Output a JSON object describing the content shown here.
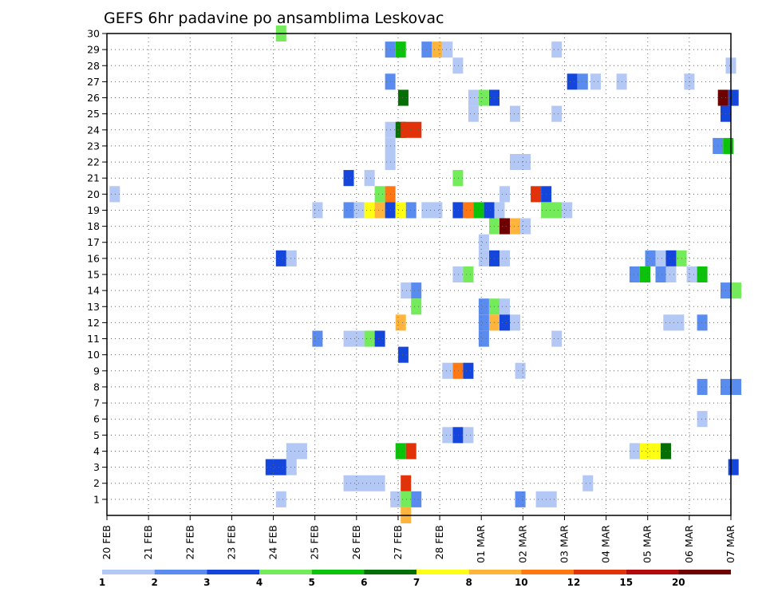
{
  "chart_data": {
    "type": "heatmap",
    "title": "GEFS 6hr padavine po ansamblima Leskovac",
    "xlabel": "",
    "ylabel": "",
    "x_unit": "6h steps from 20 FEB",
    "xlim": [
      0,
      60
    ],
    "ylim": [
      0,
      30
    ],
    "x_ticks": [
      {
        "x": 0,
        "label": "20 FEB"
      },
      {
        "x": 4,
        "label": "21 FEB"
      },
      {
        "x": 8,
        "label": "22 FEB"
      },
      {
        "x": 12,
        "label": "23 FEB"
      },
      {
        "x": 16,
        "label": "24 FEB"
      },
      {
        "x": 20,
        "label": "25 FEB"
      },
      {
        "x": 24,
        "label": "26 FEB"
      },
      {
        "x": 28,
        "label": "27 FEB"
      },
      {
        "x": 32,
        "label": "28 FEB"
      },
      {
        "x": 36,
        "label": "01 MAR"
      },
      {
        "x": 40,
        "label": "02 MAR"
      },
      {
        "x": 44,
        "label": "03 MAR"
      },
      {
        "x": 48,
        "label": "04 MAR"
      },
      {
        "x": 52,
        "label": "05 MAR"
      },
      {
        "x": 56,
        "label": "06 MAR"
      },
      {
        "x": 60,
        "label": "07 MAR"
      }
    ],
    "y_ticks": [
      1,
      2,
      3,
      4,
      5,
      6,
      7,
      8,
      9,
      10,
      11,
      12,
      13,
      14,
      15,
      16,
      17,
      18,
      19,
      20,
      21,
      22,
      23,
      24,
      25,
      26,
      27,
      28,
      29,
      30
    ],
    "legend": {
      "placement": "bottom",
      "colors": [
        "#b4c8f5",
        "#5a8cf0",
        "#1446dc",
        "#73eb5a",
        "#0ac30a",
        "#056e05",
        "#ffff14",
        "#ffb43c",
        "#ff7814",
        "#e1320a",
        "#b40a0a",
        "#6e0000"
      ],
      "labels": [
        "1",
        "2",
        "3",
        "4",
        "5",
        "6",
        "7",
        "8",
        "10",
        "12",
        "15",
        "20"
      ]
    },
    "grid": true,
    "colors": {
      "c1": "#b4c8f5",
      "c2": "#5a8cf0",
      "c3": "#1446dc",
      "c4": "#73eb5a",
      "c5": "#0ac30a",
      "c6": "#056e05",
      "c7": "#ffff14",
      "c8": "#ffb43c",
      "c9": "#ff7814",
      "c10": "#e1320a",
      "c11": "#b40a0a",
      "c12": "#6e0000"
    },
    "cells": [
      [
        0.25,
        20,
        1,
        1
      ],
      [
        16.25,
        30,
        1,
        4
      ],
      [
        26.75,
        29,
        1,
        2
      ],
      [
        27.75,
        29,
        1,
        5
      ],
      [
        30.25,
        29,
        1,
        2
      ],
      [
        31.25,
        29,
        1,
        8
      ],
      [
        32.25,
        29,
        1,
        1
      ],
      [
        42.75,
        29,
        1,
        1
      ],
      [
        33.25,
        28,
        1,
        1
      ],
      [
        59.5,
        28,
        1,
        1
      ],
      [
        26.75,
        27,
        1,
        2
      ],
      [
        44.25,
        27,
        1,
        3
      ],
      [
        45.25,
        27,
        1,
        2
      ],
      [
        46.5,
        27,
        1,
        1
      ],
      [
        49,
        27,
        1,
        1
      ],
      [
        55.5,
        27,
        1,
        1
      ],
      [
        28,
        26,
        1,
        6
      ],
      [
        34.75,
        26,
        1,
        1
      ],
      [
        35.75,
        26,
        1,
        4
      ],
      [
        36.75,
        26,
        1,
        3
      ],
      [
        58.75,
        26,
        1,
        12
      ],
      [
        59.75,
        26,
        1,
        3
      ],
      [
        34.75,
        25,
        1,
        1
      ],
      [
        38.75,
        25,
        1,
        1
      ],
      [
        42.75,
        25,
        1,
        1
      ],
      [
        59,
        25,
        1,
        3
      ],
      [
        26.75,
        24,
        1,
        1
      ],
      [
        27.75,
        24,
        1,
        6
      ],
      [
        28.25,
        24,
        2,
        10
      ],
      [
        26.75,
        23,
        1,
        1
      ],
      [
        58.25,
        23,
        1,
        2
      ],
      [
        59.25,
        23,
        1,
        5
      ],
      [
        26.75,
        22,
        1,
        1
      ],
      [
        38.75,
        22,
        2,
        1
      ],
      [
        22.75,
        21,
        1,
        3
      ],
      [
        24.75,
        21,
        1,
        1
      ],
      [
        33.25,
        21,
        1,
        4
      ],
      [
        25.75,
        20,
        1,
        4
      ],
      [
        26.75,
        20,
        1,
        9
      ],
      [
        37.75,
        20,
        1,
        1
      ],
      [
        40.75,
        20,
        1,
        10
      ],
      [
        41.75,
        20,
        1,
        3
      ],
      [
        19.75,
        19,
        1,
        1
      ],
      [
        22.75,
        19,
        1,
        2
      ],
      [
        23.75,
        19,
        1,
        1
      ],
      [
        24.75,
        19,
        1,
        7
      ],
      [
        25.75,
        19,
        1,
        8
      ],
      [
        26.75,
        19,
        1,
        3
      ],
      [
        27.75,
        19,
        1,
        7
      ],
      [
        28.75,
        19,
        1,
        2
      ],
      [
        30.25,
        19,
        2,
        1
      ],
      [
        33.25,
        19,
        1,
        3
      ],
      [
        34.25,
        19,
        1,
        9
      ],
      [
        35.25,
        19,
        1,
        5
      ],
      [
        36.25,
        19,
        1,
        3
      ],
      [
        37.25,
        19,
        1,
        1
      ],
      [
        41.75,
        19,
        2,
        4
      ],
      [
        43.75,
        19,
        1,
        1
      ],
      [
        36.75,
        18,
        1,
        4
      ],
      [
        37.75,
        18,
        1,
        12
      ],
      [
        38.75,
        18,
        1,
        8
      ],
      [
        39.75,
        18,
        1,
        1
      ],
      [
        35.75,
        17,
        1,
        1
      ],
      [
        16.25,
        16,
        1,
        3
      ],
      [
        17.25,
        16,
        1,
        1
      ],
      [
        35.75,
        16,
        1,
        1
      ],
      [
        36.75,
        16,
        1,
        3
      ],
      [
        37.75,
        16,
        1,
        1
      ],
      [
        51.75,
        16,
        1,
        2
      ],
      [
        52.75,
        16,
        1,
        1
      ],
      [
        53.75,
        16,
        1,
        3
      ],
      [
        54.75,
        16,
        1,
        4
      ],
      [
        33.25,
        15,
        1,
        1
      ],
      [
        34.25,
        15,
        1,
        4
      ],
      [
        50.25,
        15,
        1,
        2
      ],
      [
        51.25,
        15,
        1,
        5
      ],
      [
        52.75,
        15,
        1,
        2
      ],
      [
        53.75,
        15,
        1,
        1
      ],
      [
        55.75,
        15,
        1,
        1
      ],
      [
        56.75,
        15,
        1,
        5
      ],
      [
        28.25,
        14,
        1,
        1
      ],
      [
        29.25,
        14,
        1,
        2
      ],
      [
        59,
        14,
        1,
        2
      ],
      [
        60,
        14,
        1,
        4
      ],
      [
        29.25,
        13,
        1,
        4
      ],
      [
        35.75,
        13,
        1,
        2
      ],
      [
        36.75,
        13,
        1,
        4
      ],
      [
        37.75,
        13,
        1,
        1
      ],
      [
        27.75,
        12,
        1,
        8
      ],
      [
        35.75,
        12,
        1,
        2
      ],
      [
        36.75,
        12,
        1,
        8
      ],
      [
        37.75,
        12,
        1,
        3
      ],
      [
        38.75,
        12,
        1,
        1
      ],
      [
        53.5,
        12,
        2,
        1
      ],
      [
        56.75,
        12,
        1,
        2
      ],
      [
        19.75,
        11,
        1,
        2
      ],
      [
        22.75,
        11,
        2,
        1
      ],
      [
        24.75,
        11,
        1,
        4
      ],
      [
        25.75,
        11,
        1,
        3
      ],
      [
        35.75,
        11,
        1,
        2
      ],
      [
        42.75,
        11,
        1,
        1
      ],
      [
        28,
        10,
        1,
        3
      ],
      [
        32.25,
        9,
        1,
        1
      ],
      [
        33.25,
        9,
        1,
        9
      ],
      [
        34.25,
        9,
        1,
        3
      ],
      [
        39.25,
        9,
        1,
        1
      ],
      [
        56.75,
        8,
        1,
        2
      ],
      [
        59,
        8,
        2,
        2
      ],
      [
        56.75,
        6,
        1,
        1
      ],
      [
        32.25,
        5,
        1,
        1
      ],
      [
        33.25,
        5,
        1,
        3
      ],
      [
        34.25,
        5,
        1,
        1
      ],
      [
        17.25,
        4,
        2,
        1
      ],
      [
        27.75,
        4,
        1,
        5
      ],
      [
        28.75,
        4,
        1,
        10
      ],
      [
        50.25,
        4,
        1,
        1
      ],
      [
        51.25,
        4,
        2,
        7
      ],
      [
        53.25,
        4,
        1,
        6
      ],
      [
        15.25,
        3,
        2,
        3
      ],
      [
        17.25,
        3,
        1,
        1
      ],
      [
        59.75,
        3,
        1,
        3
      ],
      [
        22.75,
        2,
        4,
        1
      ],
      [
        28.25,
        2,
        1,
        10
      ],
      [
        45.75,
        2,
        1,
        1
      ],
      [
        16.25,
        1,
        1,
        1
      ],
      [
        27.25,
        1,
        1,
        1
      ],
      [
        28.25,
        1,
        1,
        4
      ],
      [
        29.25,
        1,
        1,
        2
      ],
      [
        39.25,
        1,
        1,
        2
      ],
      [
        41.25,
        1,
        2,
        1
      ],
      [
        28.25,
        0,
        1,
        8
      ]
    ]
  }
}
